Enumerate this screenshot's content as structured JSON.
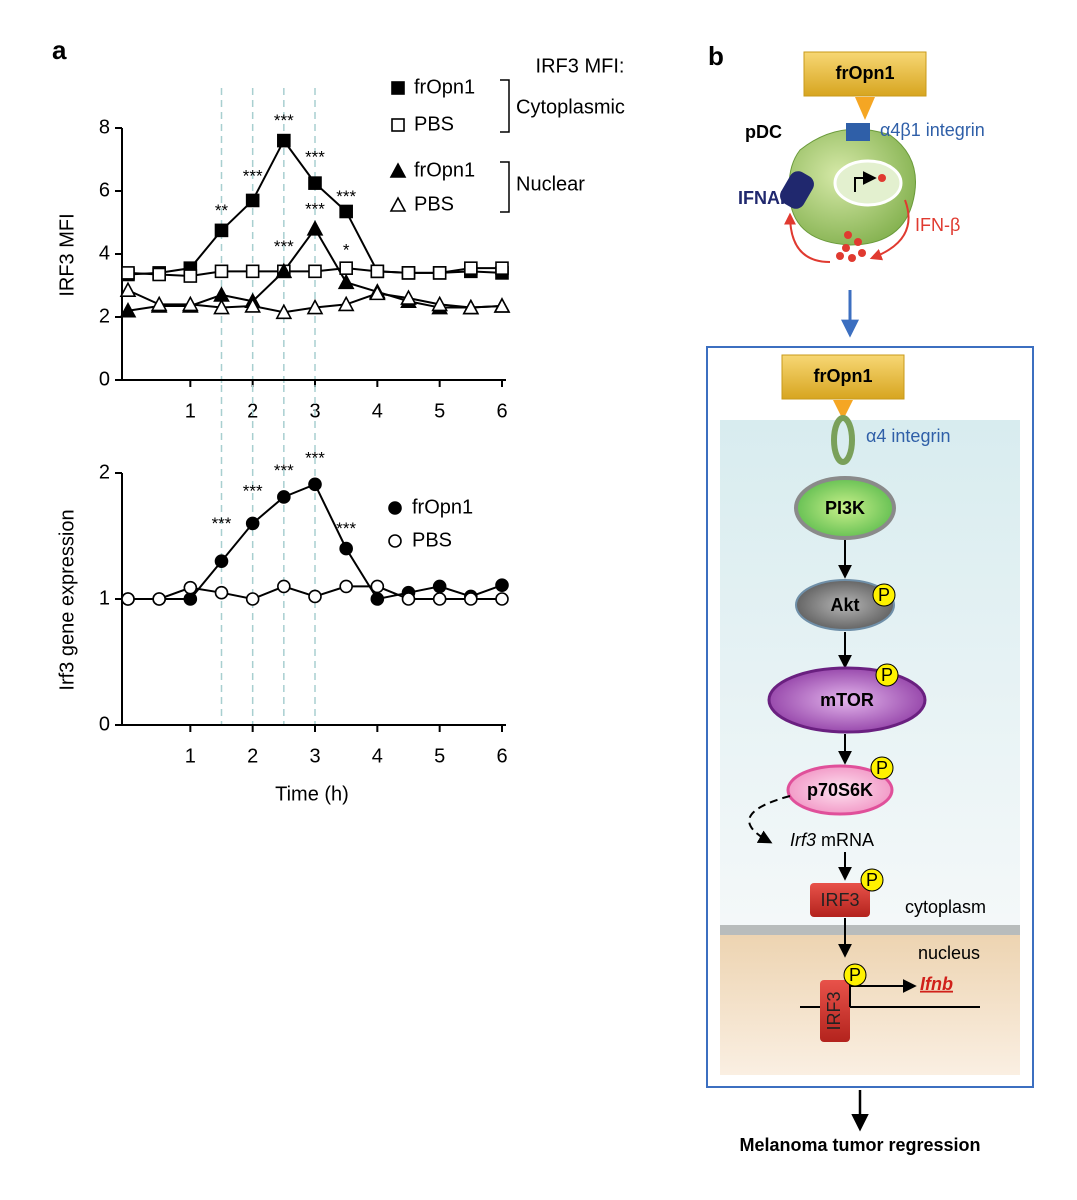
{
  "chart_data": [
    {
      "type": "line",
      "panel_label": "a",
      "ylabel": "IRF3 MFI",
      "x": [
        0,
        0.5,
        1,
        1.5,
        2,
        2.5,
        3,
        3.5,
        4,
        4.5,
        5,
        5.5,
        6
      ],
      "xlim": [
        0,
        6
      ],
      "xticks": [
        1,
        2,
        3,
        4,
        5,
        6
      ],
      "ylim": [
        0,
        8
      ],
      "yticks": [
        0,
        2,
        4,
        6,
        8
      ],
      "vlines": [
        1.5,
        2,
        2.5,
        3
      ],
      "vline_color": "#a8cfd0",
      "legend_title": "IRF3 MFI:",
      "legend_groups": [
        "Cytoplasmic",
        "Nuclear"
      ],
      "series": [
        {
          "name": "frOpn1",
          "color": "#000000",
          "marker": "square",
          "filled": true,
          "values": [
            3.35,
            3.4,
            3.55,
            4.75,
            5.7,
            7.6,
            6.25,
            5.35,
            3.45,
            3.4,
            3.4,
            3.45,
            3.4
          ]
        },
        {
          "name": "PBS",
          "color": "#000000",
          "marker": "square",
          "filled": false,
          "values": [
            3.4,
            3.35,
            3.3,
            3.45,
            3.45,
            3.45,
            3.45,
            3.55,
            3.45,
            3.4,
            3.4,
            3.55,
            3.55
          ]
        },
        {
          "name": "frOpn1",
          "color": "#000000",
          "marker": "triangle",
          "filled": true,
          "values": [
            2.2,
            2.35,
            2.35,
            2.7,
            2.5,
            3.45,
            4.8,
            3.1,
            2.8,
            2.5,
            2.3,
            2.3,
            2.35
          ]
        },
        {
          "name": "PBS",
          "color": "#000000",
          "marker": "triangle",
          "filled": false,
          "values": [
            2.85,
            2.4,
            2.4,
            2.3,
            2.35,
            2.15,
            2.3,
            2.4,
            2.75,
            2.6,
            2.4,
            2.3,
            2.35
          ]
        }
      ],
      "annotations": [
        {
          "text": "**",
          "x": 1.5,
          "y": 5.35
        },
        {
          "text": "***",
          "x": 2,
          "y": 6.45
        },
        {
          "text": "***",
          "x": 2.5,
          "y": 8.2
        },
        {
          "text": "***",
          "x": 3,
          "y": 7.05
        },
        {
          "text": "***",
          "x": 3.5,
          "y": 5.8
        },
        {
          "text": "***",
          "x": 2.5,
          "y": 4.2
        },
        {
          "text": "***",
          "x": 3,
          "y": 5.4
        },
        {
          "text": "*",
          "x": 3.5,
          "y": 4.1
        }
      ]
    },
    {
      "type": "line",
      "ylabel": "Irf3 gene expression",
      "xlabel": "Time (h)",
      "x": [
        0,
        0.5,
        1,
        1.5,
        2,
        2.5,
        3,
        3.5,
        4,
        4.5,
        5,
        5.5,
        6
      ],
      "xlim": [
        0,
        6
      ],
      "xticks": [
        1,
        2,
        3,
        4,
        5,
        6
      ],
      "ylim": [
        0,
        2
      ],
      "yticks": [
        0,
        1,
        2
      ],
      "vlines": [
        1.5,
        2,
        2.5,
        3
      ],
      "vline_color": "#a8cfd0",
      "series": [
        {
          "name": "frOpn1",
          "color": "#000000",
          "marker": "circle",
          "filled": true,
          "values": [
            1.0,
            1.0,
            1.0,
            1.3,
            1.6,
            1.81,
            1.91,
            1.4,
            1.0,
            1.05,
            1.1,
            1.02,
            1.11
          ]
        },
        {
          "name": "PBS",
          "color": "#000000",
          "marker": "circle",
          "filled": false,
          "values": [
            1.0,
            1.0,
            1.09,
            1.05,
            1.0,
            1.1,
            1.02,
            1.1,
            1.1,
            1.0,
            1.0,
            1.0,
            1.0
          ]
        }
      ],
      "annotations": [
        {
          "text": "***",
          "x": 1.5,
          "y": 1.59
        },
        {
          "text": "***",
          "x": 2,
          "y": 1.85
        },
        {
          "text": "***",
          "x": 2.5,
          "y": 2.01
        },
        {
          "text": "***",
          "x": 3,
          "y": 2.11
        },
        {
          "text": "***",
          "x": 3.5,
          "y": 1.55
        }
      ]
    }
  ],
  "diagram": {
    "panel_label": "b",
    "ligand_top": "frOpn1",
    "cell": "pDC",
    "receptor_top": "α4β1 integrin",
    "ifnar": "IFNAR",
    "ifn": "IFN-β",
    "ligand_box": "frOpn1",
    "receptor_box": "α4 integrin",
    "pi3k": "PI3K",
    "akt": "Akt",
    "mtor": "mTOR",
    "p70s6k": "p70S6K",
    "mrna_gene": "Irf3",
    "mrna": "mRNA",
    "irf3_cyto": "IRF3",
    "cytoplasm": "cytoplasm",
    "nucleus": "nucleus",
    "irf3_nuc": "IRF3",
    "ifnb": "Ifnb",
    "phospho": [
      "P",
      "P",
      "P",
      "P",
      "P"
    ],
    "outcome": "Melanoma tumor regression"
  }
}
